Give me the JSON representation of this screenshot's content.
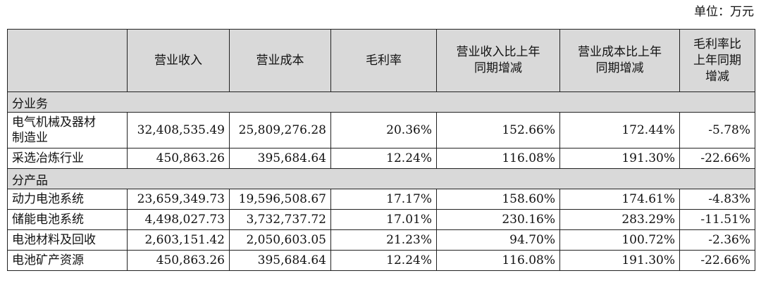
{
  "unit_label": "单位：万元",
  "headers": {
    "col0": "",
    "col1": "营业收入",
    "col2": "营业成本",
    "col3": "毛利率",
    "col4": [
      "营业收入比上年",
      "同期增减"
    ],
    "col5": [
      "营业成本比上年",
      "同期增减"
    ],
    "col6": [
      "毛利率比",
      "上年同期",
      "增减"
    ]
  },
  "sections": [
    {
      "title": "分业务",
      "rows": [
        {
          "name": [
            "电气机械及器材",
            "制造业"
          ],
          "revenue": "32,408,535.49",
          "cost": "25,809,276.28",
          "margin": "20.36%",
          "rev_change": "152.66%",
          "cost_change": "172.44%",
          "margin_change": "-5.78%"
        },
        {
          "name": [
            "采选冶炼行业"
          ],
          "revenue": "450,863.26",
          "cost": "395,684.64",
          "margin": "12.24%",
          "rev_change": "116.08%",
          "cost_change": "191.30%",
          "margin_change": "-22.66%"
        }
      ]
    },
    {
      "title": "分产品",
      "rows": [
        {
          "name": [
            "动力电池系统"
          ],
          "revenue": "23,659,349.73",
          "cost": "19,596,508.67",
          "margin": "17.17%",
          "rev_change": "158.60%",
          "cost_change": "174.61%",
          "margin_change": "-4.83%"
        },
        {
          "name": [
            "储能电池系统"
          ],
          "revenue": "4,498,027.73",
          "cost": "3,732,737.72",
          "margin": "17.01%",
          "rev_change": "230.16%",
          "cost_change": "283.29%",
          "margin_change": "-11.51%"
        },
        {
          "name": [
            "电池材料及回收"
          ],
          "revenue": "2,603,151.42",
          "cost": "2,050,603.05",
          "margin": "21.23%",
          "rev_change": "94.70%",
          "cost_change": "100.72%",
          "margin_change": "-2.36%"
        },
        {
          "name": [
            "电池矿产资源"
          ],
          "revenue": "450,863.26",
          "cost": "395,684.64",
          "margin": "12.24%",
          "rev_change": "116.08%",
          "cost_change": "191.30%",
          "margin_change": "-22.66%"
        }
      ]
    }
  ]
}
